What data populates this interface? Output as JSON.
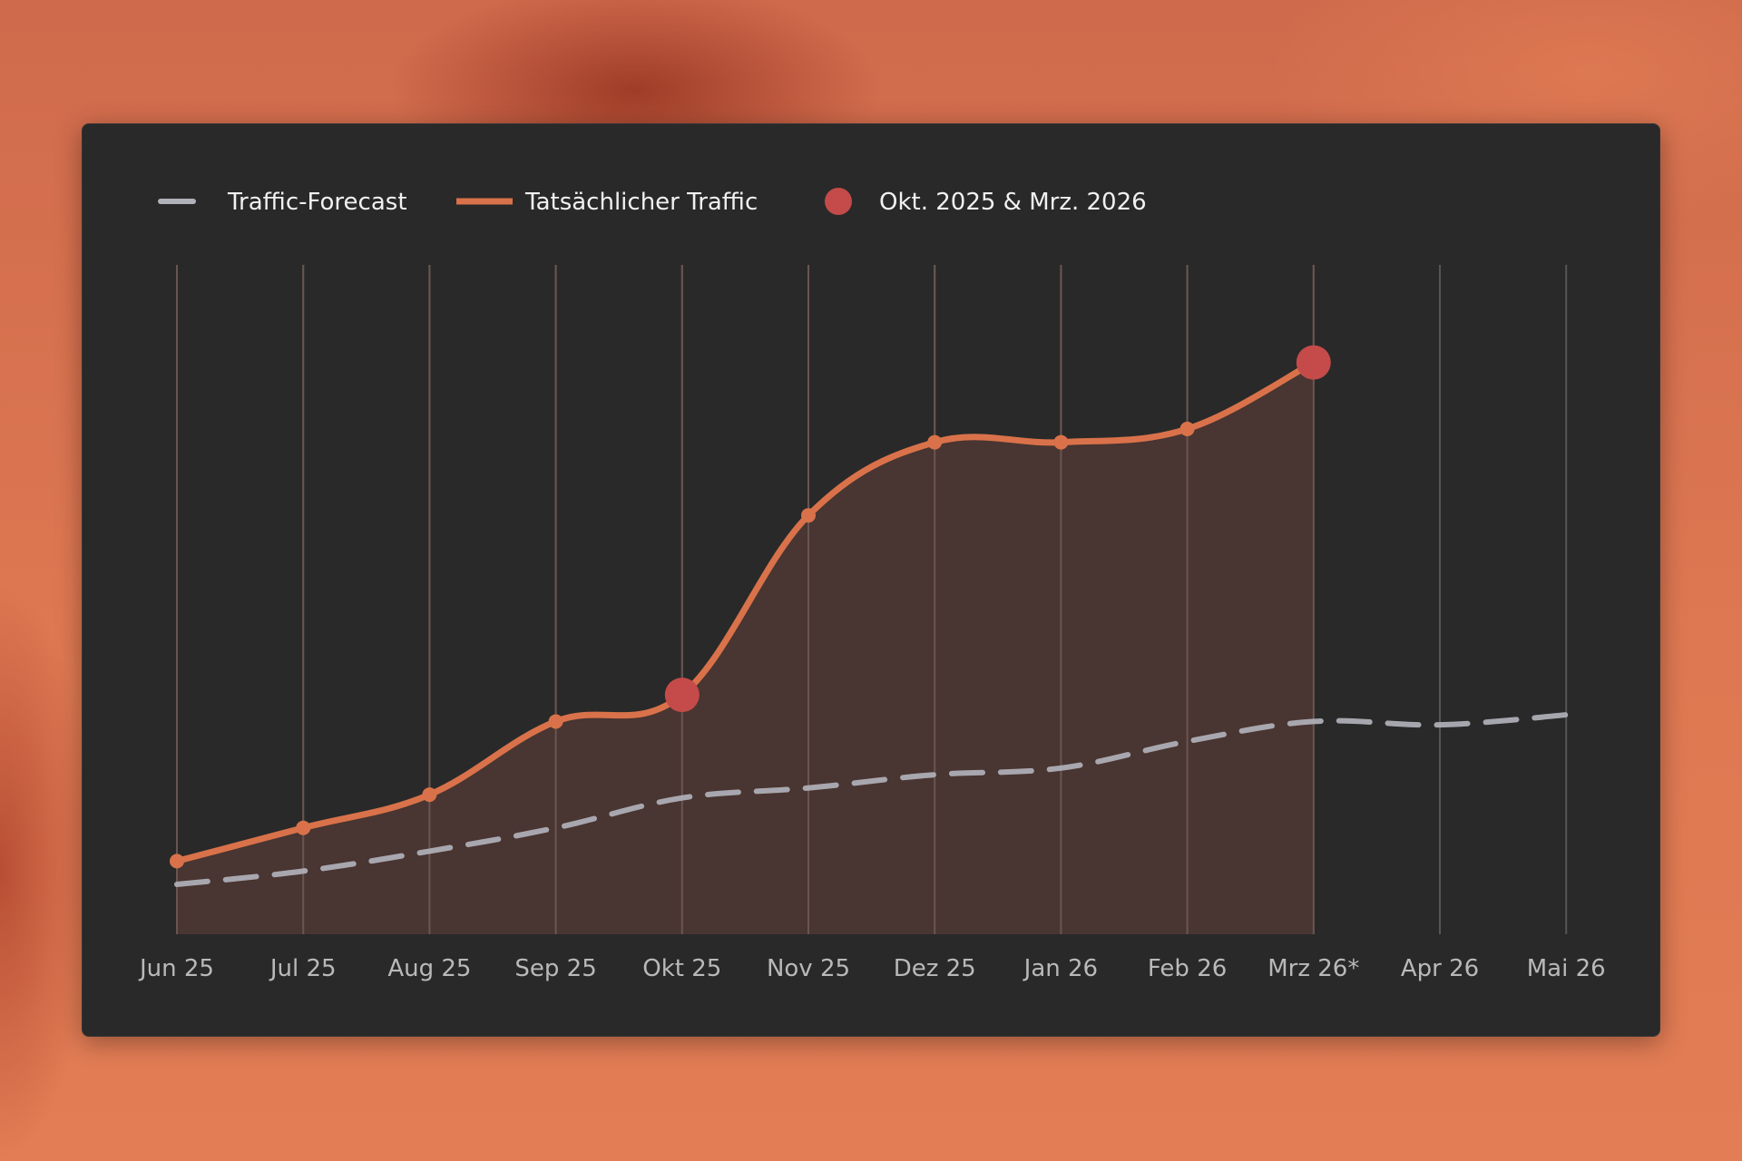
{
  "colors": {
    "background": "#d9734f",
    "card": "#292929",
    "forecast": "#b1b1ba",
    "actual": "#d9724a",
    "actual_fill": "#4b3632",
    "highlight": "#c44b4a",
    "gridline": "#555555",
    "tick_text": "#b9b9b9",
    "legend_text": "#f1f1f1"
  },
  "chart_data": {
    "type": "line",
    "categories": [
      "Jun 25",
      "Jul 25",
      "Aug 25",
      "Sep 25",
      "Okt 25",
      "Nov 25",
      "Dez 25",
      "Jan 26",
      "Feb 26",
      "Mrz 26*",
      "Apr 26",
      "Mai 26"
    ],
    "series": [
      {
        "name": "Traffic-Forecast",
        "style": "dashed",
        "values": [
          7.5,
          9.5,
          12.5,
          16,
          20.5,
          22,
          24,
          25,
          29,
          32,
          31.5,
          33
        ]
      },
      {
        "name": "Tatsächlicher Traffic",
        "style": "solid-filled",
        "values": [
          11,
          16,
          21,
          32,
          36,
          63,
          74,
          74,
          76,
          86,
          null,
          null
        ]
      }
    ],
    "highlight": {
      "name": "Okt. 2025 & Mrz. 2026",
      "categories": [
        "Okt 25",
        "Mrz 26*"
      ]
    },
    "ylim": [
      0,
      100
    ],
    "grid": "vertical",
    "legend_position": "top-left",
    "title": "",
    "xlabel": "",
    "ylabel": ""
  }
}
